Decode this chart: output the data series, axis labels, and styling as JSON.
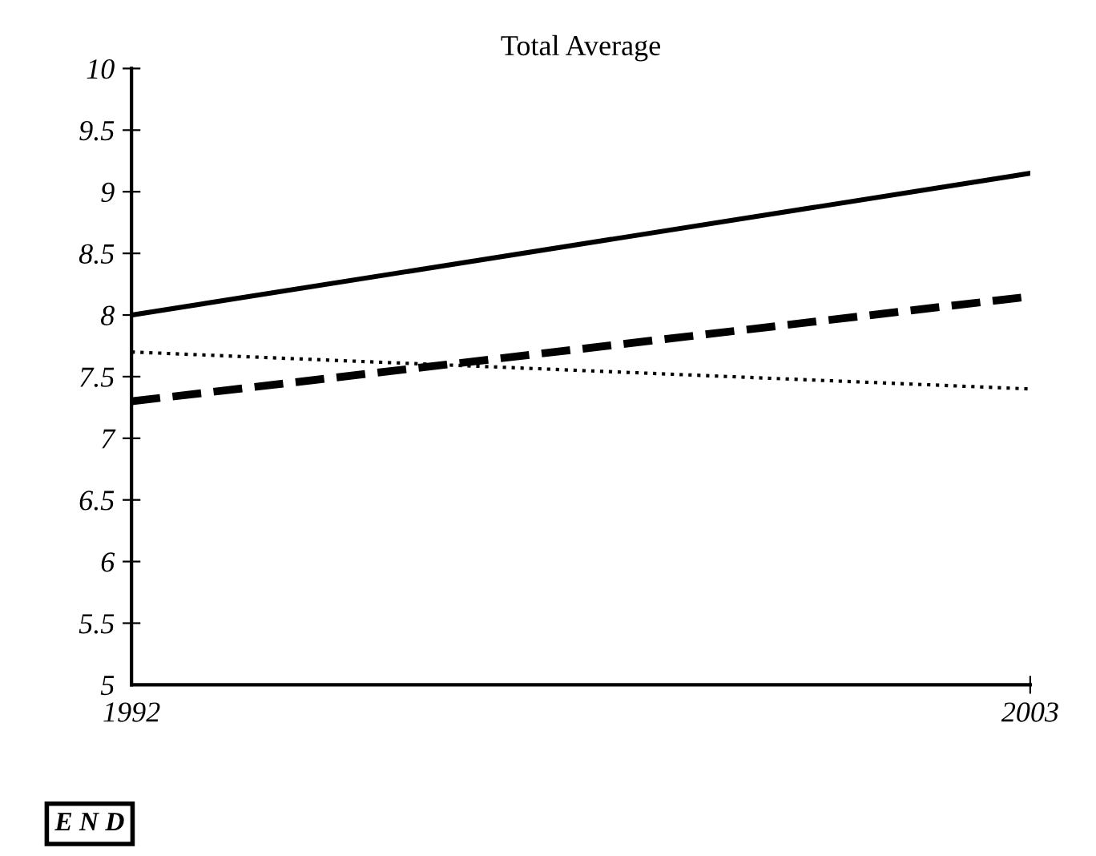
{
  "chart_data": {
    "type": "line",
    "title": "Total Average",
    "x": [
      1992,
      2003
    ],
    "series": [
      {
        "color": "#000000",
        "values": [
          8.0,
          9.15
        ],
        "line_style": "solid"
      },
      {
        "color": "#000000",
        "values": [
          7.3,
          8.15
        ],
        "line_style": "dashed"
      },
      {
        "color": "#000000",
        "values": [
          7.7,
          7.4
        ],
        "line_style": "dotted"
      }
    ],
    "xlim": [
      1992,
      2003
    ],
    "xticks": [
      1992,
      2003
    ],
    "ylim": [
      5,
      10
    ],
    "yticks": [
      5,
      5.5,
      6,
      6.5,
      7,
      7.5,
      8,
      8.5,
      9,
      9.5,
      10
    ],
    "grid": false,
    "legend": false,
    "annotations": [
      "E N D"
    ]
  }
}
